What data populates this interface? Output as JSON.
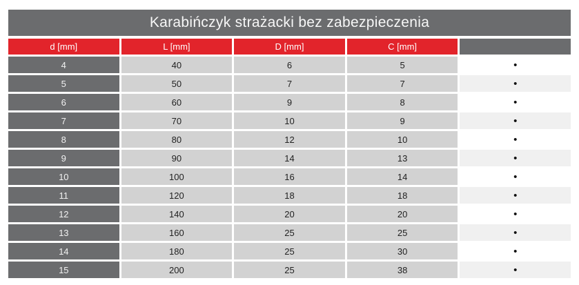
{
  "title": "Karabińczyk strażacki bez zabezpieczenia",
  "table": {
    "columns": [
      "d [mm]",
      "L [mm]",
      "D [mm]",
      "C [mm]",
      ""
    ],
    "rows": [
      [
        "4",
        "40",
        "6",
        "5"
      ],
      [
        "5",
        "50",
        "7",
        "7"
      ],
      [
        "6",
        "60",
        "9",
        "8"
      ],
      [
        "7",
        "70",
        "10",
        "9"
      ],
      [
        "8",
        "80",
        "12",
        "10"
      ],
      [
        "9",
        "90",
        "14",
        "13"
      ],
      [
        "10",
        "100",
        "16",
        "14"
      ],
      [
        "11",
        "120",
        "18",
        "18"
      ],
      [
        "12",
        "140",
        "20",
        "20"
      ],
      [
        "13",
        "160",
        "25",
        "25"
      ],
      [
        "14",
        "180",
        "25",
        "30"
      ],
      [
        "15",
        "200",
        "25",
        "38"
      ]
    ],
    "bullet": "•"
  },
  "colors": {
    "header_red": "#e2242b",
    "dark_gray": "#6b6c6e",
    "cell_gray": "#d2d2d2",
    "alt_row": "#f0f0f0",
    "dot_black": "#111111"
  }
}
